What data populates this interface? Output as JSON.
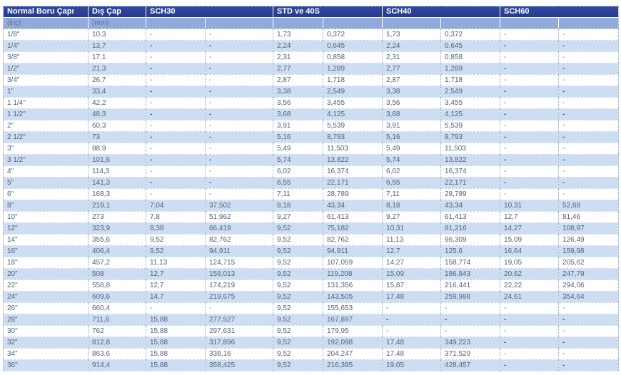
{
  "table": {
    "header": {
      "col_pipe_size": "Normal Boru Çapı",
      "col_outer_diameter": "Dış Çap",
      "groups": [
        "SCH30",
        "STD ve 40S",
        "SCH40",
        "SCH60"
      ]
    },
    "units": {
      "pipe_size": "(inç)",
      "outer_diameter": "(mm)"
    },
    "rows": [
      [
        "1/8\"",
        "10,3",
        "-",
        "-",
        "1,73",
        "0,372",
        "1,73",
        "0,372",
        "-",
        "-"
      ],
      [
        "1/4\"",
        "13,7",
        "-",
        "-",
        "2,24",
        "0,645",
        "2,24",
        "0,645",
        "-",
        "-"
      ],
      [
        "3/8\"",
        "17,1",
        "-",
        "-",
        "2,31",
        "0,858",
        "2,31",
        "0,858",
        "-",
        "-"
      ],
      [
        "1/2\"",
        "21,3",
        "-",
        "-",
        "2,77",
        "1,289",
        "2,77",
        "1,289",
        "-",
        "-"
      ],
      [
        "3/4\"",
        "26,7",
        "-",
        "-",
        "2,87",
        "1,718",
        "2,87",
        "1,718",
        "-",
        "-"
      ],
      [
        "1\"",
        "33,4",
        "-",
        "-",
        "3,38",
        "2,549",
        "3,38",
        "2,549",
        "-",
        "-"
      ],
      [
        "1 1/4\"",
        "42,2",
        "-",
        "-",
        "3,56",
        "3,455",
        "3,56",
        "3,455",
        "-",
        "-"
      ],
      [
        "1 1/2\"",
        "48,3",
        "-",
        "-",
        "3,68",
        "4,125",
        "3,68",
        "4,125",
        "-",
        "-"
      ],
      [
        "2\"",
        "60,3",
        "-",
        "-",
        "3,91",
        "5,539",
        "3,91",
        "5,539",
        "-",
        "-"
      ],
      [
        "2 1/2\"",
        "73",
        "-",
        "-",
        "5,16",
        "8,793",
        "5,16",
        "8,793",
        "-",
        "-"
      ],
      [
        "3\"",
        "88,9",
        "-",
        "-",
        "5,49",
        "11,503",
        "5,49",
        "11,503",
        "-",
        "-"
      ],
      [
        "3 1/2\"",
        "101,6",
        "-",
        "-",
        "5,74",
        "13,822",
        "5,74",
        "13,822",
        "-",
        "-"
      ],
      [
        "4\"",
        "114,3",
        "-",
        "-",
        "6,02",
        "16,374",
        "6,02",
        "16,374",
        "-",
        "-"
      ],
      [
        "5\"",
        "141,3",
        "-",
        "-",
        "6,55",
        "22,171",
        "6,55",
        "22,171",
        "-",
        "-"
      ],
      [
        "6\"",
        "168,3",
        "-",
        "-",
        "7,11",
        "28,789",
        "7,11",
        "28,789",
        "-",
        "-"
      ],
      [
        "8\"",
        "219,1",
        "7,04",
        "37,502",
        "8,18",
        "43,34",
        "8,18",
        "43,34",
        "10,31",
        "52,88"
      ],
      [
        "10\"",
        "273",
        "7,8",
        "51,962",
        "9,27",
        "61,413",
        "9,27",
        "61,413",
        "12,7",
        "81,46"
      ],
      [
        "12\"",
        "323,9",
        "8,38",
        "66,419",
        "9,52",
        "75,182",
        "10,31",
        "81,216",
        "14,27",
        "108,97"
      ],
      [
        "14\"",
        "355,6",
        "9,52",
        "82,762",
        "9,52",
        "82,762",
        "11,13",
        "96,309",
        "15,09",
        "126,49"
      ],
      [
        "16\"",
        "406,4",
        "9,52",
        "94,911",
        "9,52",
        "94,911",
        "12,7",
        "125,6",
        "16,64",
        "159,98"
      ],
      [
        "18\"",
        "457,2",
        "11,13",
        "124,715",
        "9,52",
        "107,059",
        "14,27",
        "158,774",
        "19,05",
        "205,62"
      ],
      [
        "20\"",
        "508",
        "12,7",
        "158,013",
        "9,52",
        "119,208",
        "15,09",
        "186,843",
        "20,62",
        "247,79"
      ],
      [
        "22\"",
        "558,8",
        "12,7",
        "174,219",
        "9,52",
        "131,356",
        "15,87",
        "216,441",
        "22,22",
        "294,06"
      ],
      [
        "24\"",
        "609,6",
        "14,7",
        "219,675",
        "9,52",
        "143,505",
        "17,48",
        "259,998",
        "24,61",
        "354,64"
      ],
      [
        "26\"",
        "660,4",
        "-",
        "-",
        "9,52",
        "155,653",
        "-",
        "-",
        "-",
        "-"
      ],
      [
        "28\"",
        "711,6",
        "15,88",
        "277,527",
        "9,52",
        "167,897",
        "-",
        "-",
        "-",
        "-"
      ],
      [
        "30\"",
        "762",
        "15,88",
        "297,631",
        "9,52",
        "179,95",
        "-",
        "-",
        "-",
        "-"
      ],
      [
        "32\"",
        "812,8",
        "15,88",
        "317,896",
        "9,52",
        "192,098",
        "17,48",
        "349,223",
        "-",
        "-"
      ],
      [
        "34\"",
        "863,6",
        "15,88",
        "338,16",
        "9,52",
        "204,247",
        "17,48",
        "371,529",
        "-",
        "-"
      ],
      [
        "36\"",
        "914,4",
        "15,88",
        "358,425",
        "9,52",
        "216,395",
        "19,05",
        "428,457",
        "-",
        "-"
      ]
    ]
  },
  "colors": {
    "header_navy": "#2b4191",
    "unit_row_blue": "#91aadb",
    "alt_row_blue": "#cddef3",
    "cell_text": "#52617f"
  }
}
